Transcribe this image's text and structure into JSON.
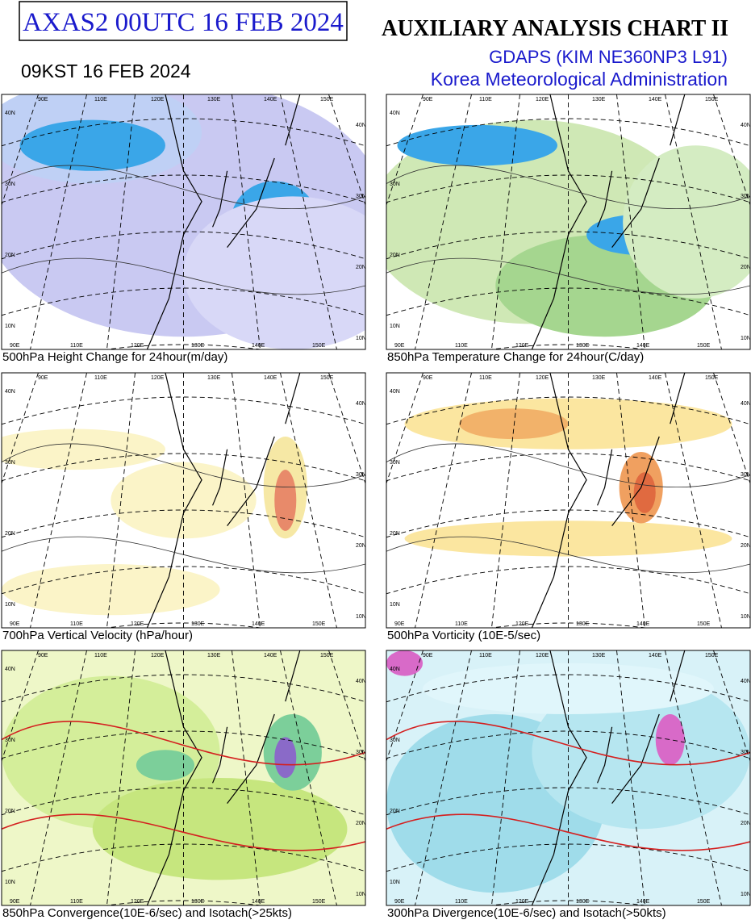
{
  "header": {
    "box_title": "AXAS2  00UTC 16 FEB 2024",
    "title": "AUXILIARY ANALYSIS CHART II",
    "kst": "09KST 16 FEB 2024",
    "model": "GDAPS (KIM NE360NP3 L91)",
    "agency": "Korea Meteorological Administration"
  },
  "map_labels": {
    "lat": [
      "40N",
      "30N",
      "20N",
      "10N"
    ],
    "lon": [
      "90E",
      "110E",
      "120E",
      "130E",
      "140E",
      "150E"
    ]
  },
  "panels": [
    {
      "caption": "500hPa Height Change for 24hour(m/day)"
    },
    {
      "caption": "850hPa Temperature Change for 24hour(C/day)"
    },
    {
      "caption": "700hPa Vertical Velocity (hPa/hour)"
    },
    {
      "caption": "500hPa Vorticity (10E-5/sec)"
    },
    {
      "caption": "850hPa Convergence(10E-6/sec) and Isotach(>25kts)"
    },
    {
      "caption": "300hPa Divergence(10E-6/sec) and Isotach(>50kts)"
    }
  ]
}
